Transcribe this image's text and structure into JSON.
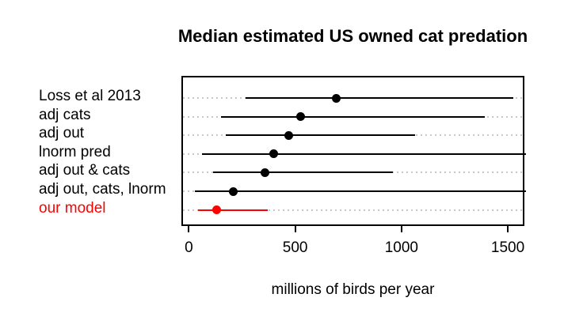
{
  "title": "Median estimated US owned cat predation",
  "background": "#ffffff",
  "colors": {
    "default_series": "#000000",
    "highlight_series": "#ff0000",
    "gridline": "#c9c9c9",
    "axis": "#000000",
    "frame": "#000000"
  },
  "chart_data": {
    "type": "scatter",
    "subtype": "forest-plot (median dot with min-max range line per category)",
    "title": "Median estimated US owned cat predation",
    "xlabel": "millions of birds per year",
    "ylabel": "",
    "x_ticks": [
      "0",
      "500",
      "1000",
      "1500"
    ],
    "x_tick_values": [
      0,
      500,
      1000,
      1500
    ],
    "xlim": [
      -35,
      1578
    ],
    "grid": "horizontal dotted light-gray gridline across plot at each category row",
    "legend": "none",
    "categories": [
      "Loss et al 2013",
      "adj cats",
      "adj out",
      "lnorm pred",
      "adj out & cats",
      "adj out, cats, lnorm",
      "our model"
    ],
    "series": [
      {
        "name": "Loss et al 2013",
        "median": 684,
        "low": 258,
        "high": 1518,
        "clipped_high": false,
        "color": "#000000"
      },
      {
        "name": "adj cats",
        "median": 520,
        "low": 145,
        "high": 1385,
        "clipped_high": false,
        "color": "#000000"
      },
      {
        "name": "adj out",
        "median": 462,
        "low": 167,
        "high": 1056,
        "clipped_high": false,
        "color": "#000000"
      },
      {
        "name": "lnorm pred",
        "median": 393,
        "low": 55,
        "high": 1578,
        "clipped_high": true,
        "color": "#000000"
      },
      {
        "name": "adj out & cats",
        "median": 351,
        "low": 105,
        "high": 953,
        "clipped_high": false,
        "color": "#000000"
      },
      {
        "name": "adj out, cats, lnorm",
        "median": 200,
        "low": 20,
        "high": 1578,
        "clipped_high": true,
        "color": "#000000"
      },
      {
        "name": "our model",
        "median": 124,
        "low": 36,
        "high": 365,
        "clipped_high": false,
        "color": "#ff0000"
      }
    ]
  }
}
